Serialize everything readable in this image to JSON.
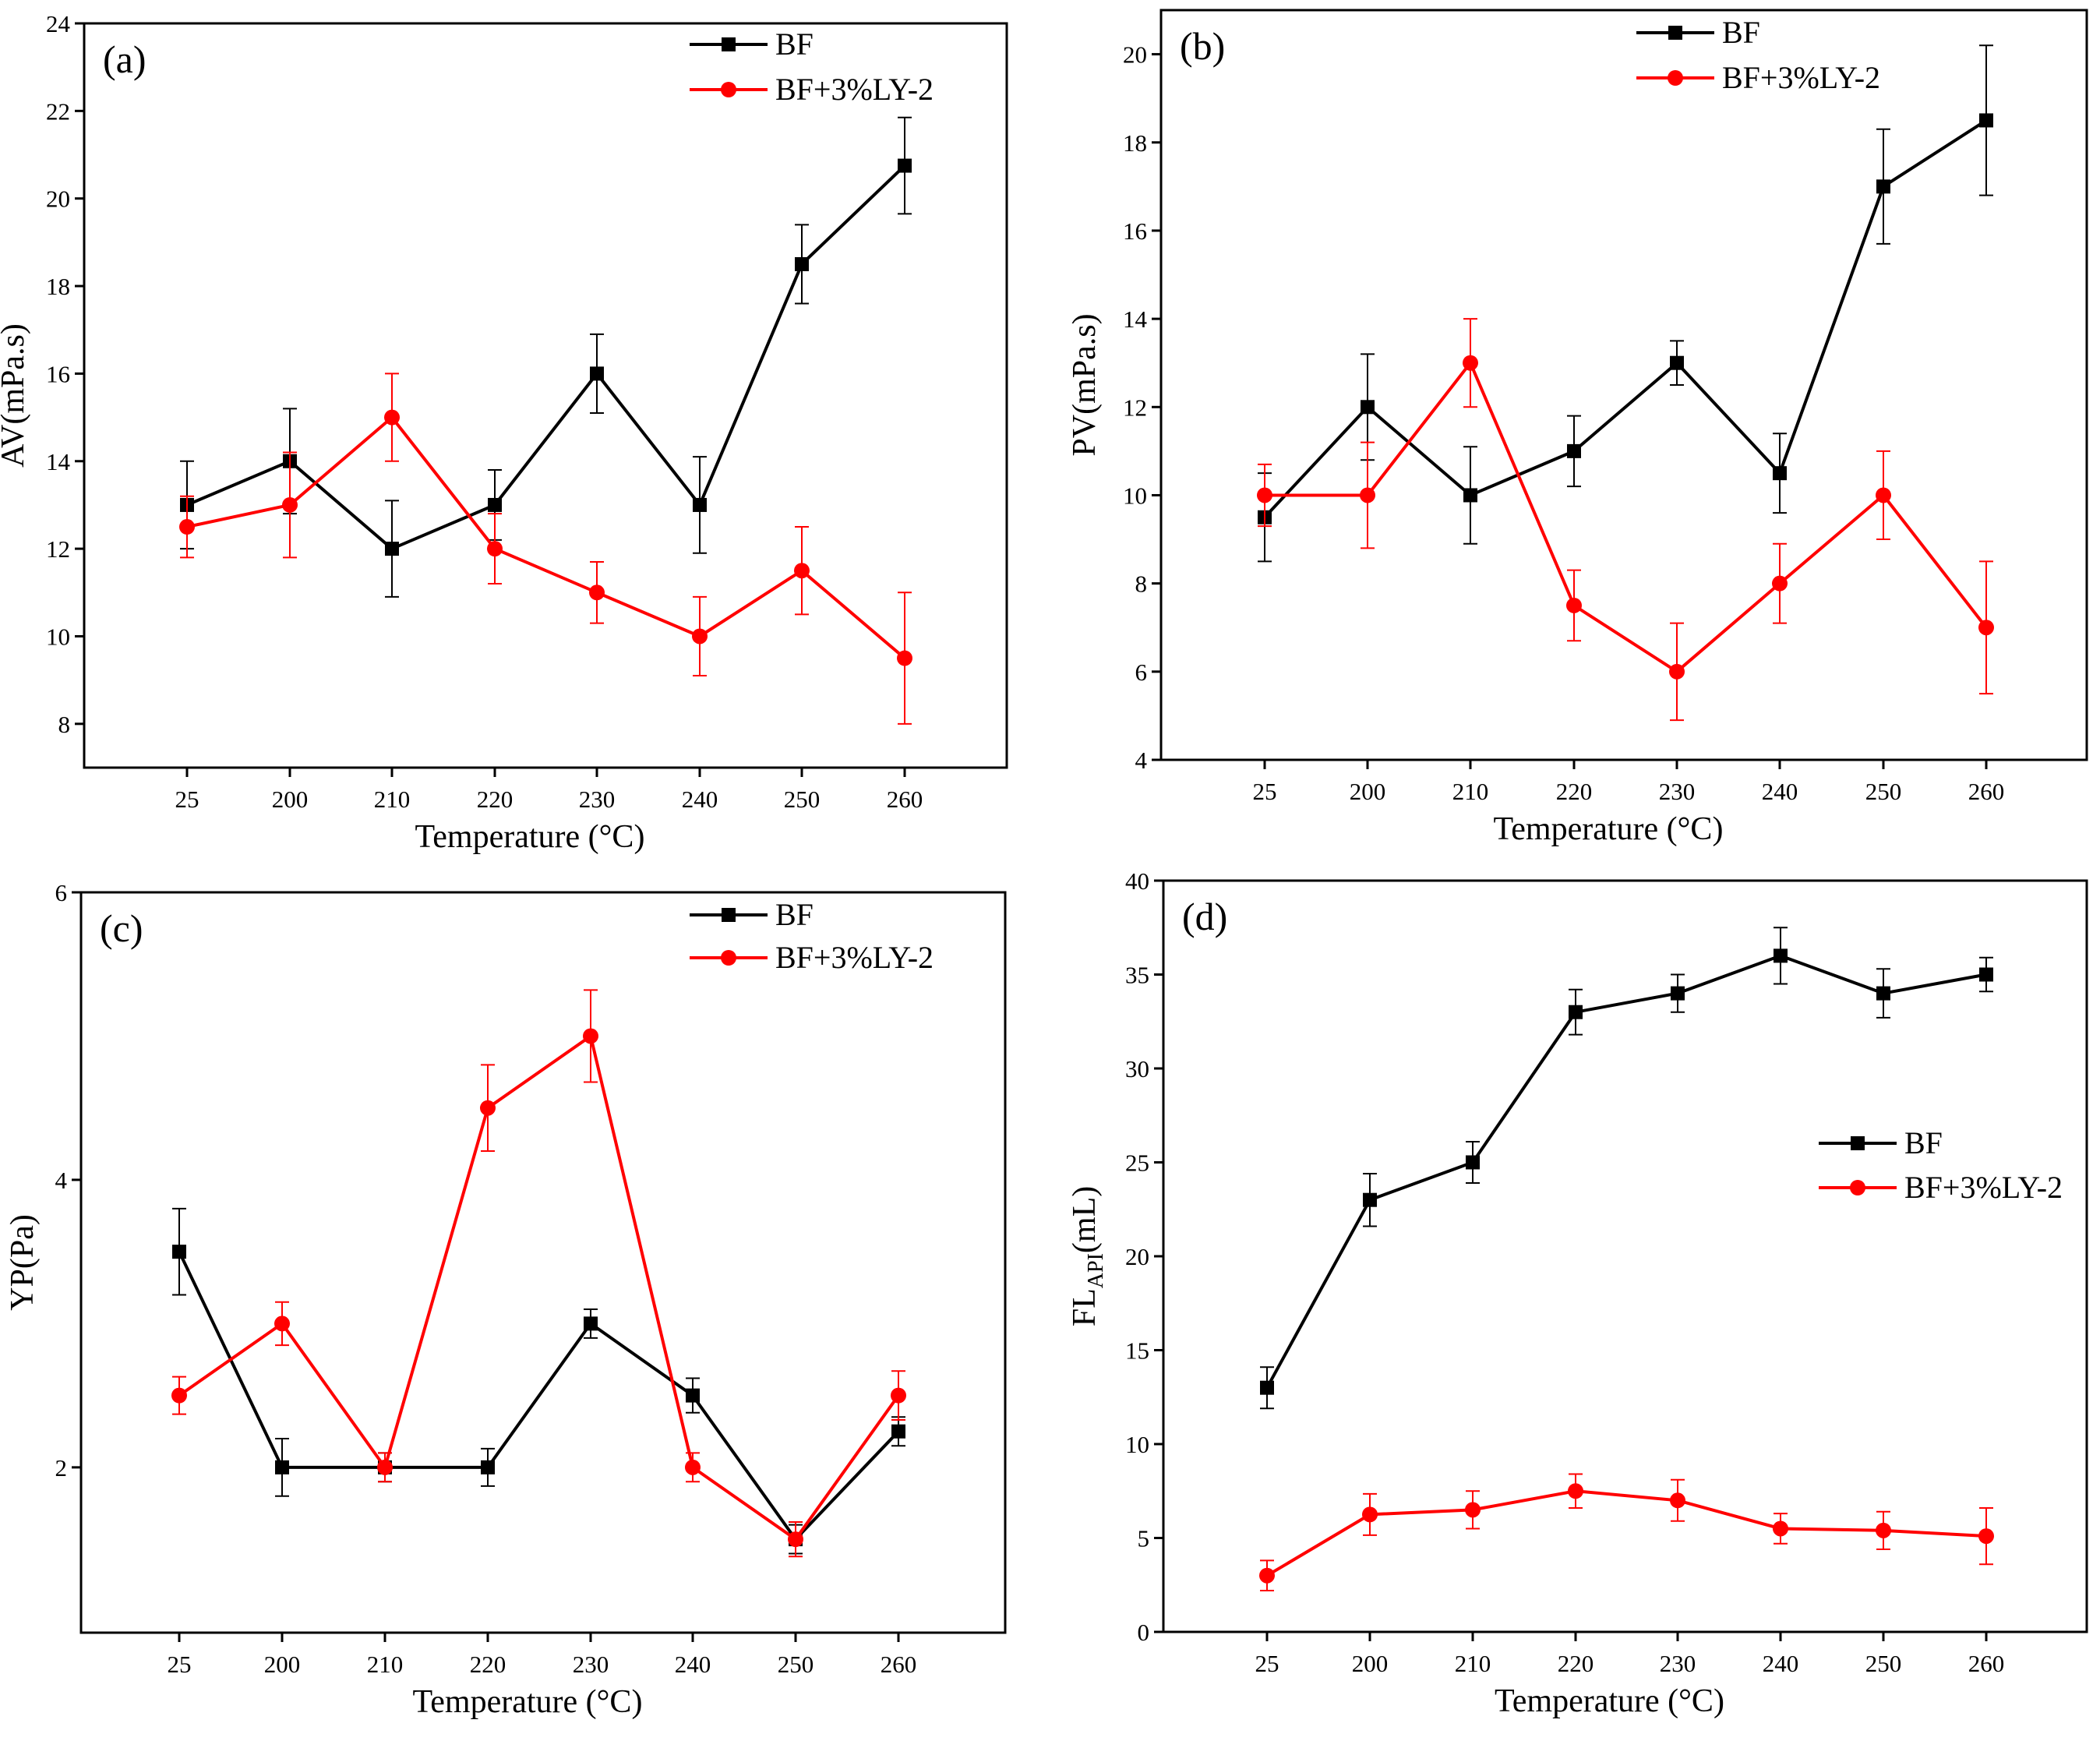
{
  "chart_data": [
    {
      "type": "line",
      "panel_label": "(a)",
      "categories": [
        "25",
        "200",
        "210",
        "220",
        "230",
        "240",
        "250",
        "260"
      ],
      "xlabel": "Temperature (°C)",
      "ylabel": "AV(mPa.s)",
      "ylim": [
        7,
        24
      ],
      "yticks": [
        "8",
        "10",
        "12",
        "14",
        "16",
        "18",
        "20",
        "22",
        "24"
      ],
      "legend_position": "top-right",
      "series": [
        {
          "name": "BF",
          "color": "#000000",
          "marker": "square",
          "values": [
            13,
            14,
            12,
            13,
            16,
            13,
            18.5,
            20.75
          ],
          "errors": [
            1.0,
            1.2,
            1.1,
            0.8,
            0.9,
            1.1,
            0.9,
            1.1
          ]
        },
        {
          "name": "BF+3%LY-2",
          "color": "#ff0000",
          "marker": "circle",
          "values": [
            12.5,
            13,
            15,
            12,
            11,
            10,
            11.5,
            9.5
          ],
          "errors": [
            0.7,
            1.2,
            1.0,
            0.8,
            0.7,
            0.9,
            1.0,
            1.5
          ]
        }
      ]
    },
    {
      "type": "line",
      "panel_label": "(b)",
      "categories": [
        "25",
        "200",
        "210",
        "220",
        "230",
        "240",
        "250",
        "260"
      ],
      "xlabel": "Temperature (°C)",
      "ylabel": "PV(mPa.s)",
      "ylim": [
        4,
        21
      ],
      "yticks": [
        "4",
        "6",
        "8",
        "10",
        "12",
        "14",
        "16",
        "18",
        "20"
      ],
      "legend_position": "top-right",
      "series": [
        {
          "name": "BF",
          "color": "#000000",
          "marker": "square",
          "values": [
            9.5,
            12,
            10,
            11,
            13,
            10.5,
            17,
            18.5
          ],
          "errors": [
            1.0,
            1.2,
            1.1,
            0.8,
            0.5,
            0.9,
            1.3,
            1.7
          ]
        },
        {
          "name": "BF+3%LY-2",
          "color": "#ff0000",
          "marker": "circle",
          "values": [
            10,
            10,
            13,
            7.5,
            6,
            8,
            10,
            7
          ],
          "errors": [
            0.7,
            1.2,
            1.0,
            0.8,
            1.1,
            0.9,
            1.0,
            1.5
          ]
        }
      ]
    },
    {
      "type": "line",
      "panel_label": "(c)",
      "categories": [
        "25",
        "200",
        "210",
        "220",
        "230",
        "240",
        "250",
        "260"
      ],
      "xlabel": "Temperature (°C)",
      "ylabel": "YP(Pa)",
      "ylim": [
        0.85,
        6
      ],
      "yticks": [
        "2",
        "4",
        "6"
      ],
      "legend_position": "top-right",
      "series": [
        {
          "name": "BF",
          "color": "#000000",
          "marker": "square",
          "values": [
            3.5,
            2,
            2,
            2,
            3,
            2.5,
            1.5,
            2.25
          ],
          "errors": [
            0.3,
            0.2,
            0.1,
            0.13,
            0.1,
            0.12,
            0.1,
            0.1
          ]
        },
        {
          "name": "BF+3%LY-2",
          "color": "#ff0000",
          "marker": "circle",
          "values": [
            2.5,
            3,
            2,
            4.5,
            5,
            2,
            1.5,
            2.5
          ],
          "errors": [
            0.13,
            0.15,
            0.1,
            0.3,
            0.32,
            0.1,
            0.12,
            0.17
          ]
        }
      ]
    },
    {
      "type": "line",
      "panel_label": "(d)",
      "categories": [
        "25",
        "200",
        "210",
        "220",
        "230",
        "240",
        "250",
        "260"
      ],
      "xlabel": "Temperature (°C)",
      "ylabel": "FL",
      "ylabel_subscript": "API",
      "ylabel_suffix": "(mL)",
      "ylim": [
        0,
        40
      ],
      "yticks": [
        "0",
        "5",
        "10",
        "15",
        "20",
        "25",
        "30",
        "35",
        "40"
      ],
      "legend_position": "center-right",
      "series": [
        {
          "name": "BF",
          "color": "#000000",
          "marker": "square",
          "values": [
            13,
            23,
            25,
            33,
            34,
            36,
            34,
            35
          ],
          "errors": [
            1.1,
            1.4,
            1.1,
            1.2,
            1.0,
            1.5,
            1.3,
            0.9
          ]
        },
        {
          "name": "BF+3%LY-2",
          "color": "#ff0000",
          "marker": "circle",
          "values": [
            3,
            6.25,
            6.5,
            7.5,
            7,
            5.5,
            5.4,
            5.1
          ],
          "errors": [
            0.8,
            1.1,
            1.0,
            0.9,
            1.1,
            0.8,
            1.0,
            1.5
          ]
        }
      ]
    }
  ]
}
